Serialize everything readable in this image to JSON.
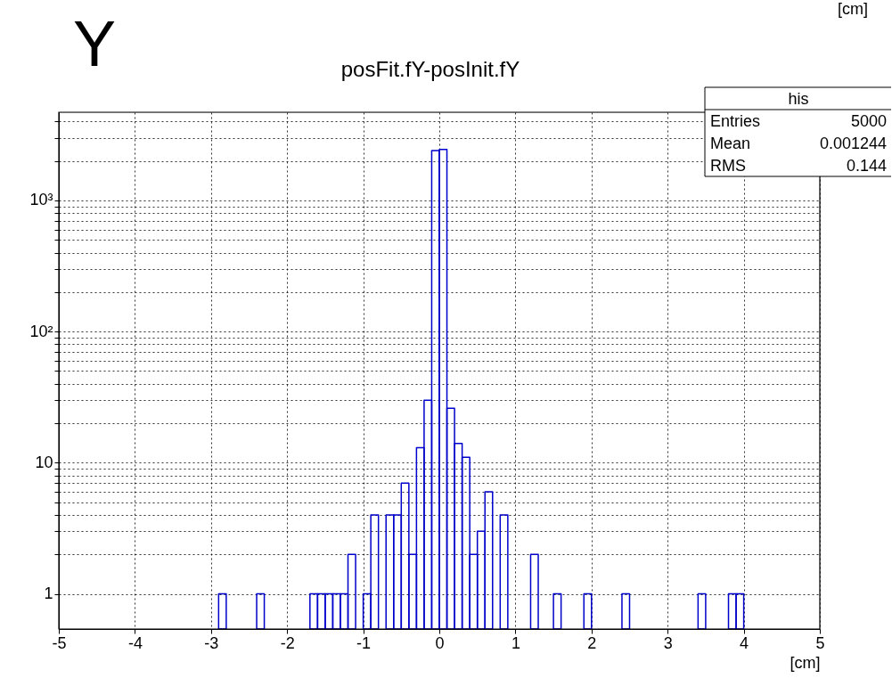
{
  "chart_data": {
    "type": "histogram",
    "title": "posFit.fY-posInit.fY",
    "xlabel": "[cm]",
    "annotations": [
      "Y",
      "[cm]",
      "his",
      "Entries",
      "5000",
      "Mean",
      "0.001244",
      "RMS",
      "0.144"
    ],
    "bins": [
      -5.0,
      -4.9,
      -4.8,
      -4.7,
      -4.6,
      -4.5,
      -4.4,
      -4.3,
      -4.2,
      -4.1,
      -4.0,
      -3.9,
      -3.8,
      -3.7,
      -3.6,
      -3.5,
      -3.4,
      -3.3,
      -3.2,
      -3.1,
      -3.0,
      -2.9,
      -2.8,
      -2.7,
      -2.6,
      -2.5,
      -2.4,
      -2.3,
      -2.2,
      -2.1,
      -2.0,
      -1.9,
      -1.8,
      -1.7,
      -1.6,
      -1.5,
      -1.4,
      -1.3,
      -1.2,
      -1.1,
      -1.0,
      -0.9,
      -0.8,
      -0.7,
      -0.6,
      -0.5,
      -0.4,
      -0.3,
      -0.2,
      -0.1,
      0.0,
      0.1,
      0.2,
      0.3,
      0.4,
      0.5,
      0.6,
      0.7,
      0.8,
      0.9,
      1.0,
      1.1,
      1.2,
      1.3,
      1.4,
      1.5,
      1.6,
      1.7,
      1.8,
      1.9,
      2.0,
      2.1,
      2.2,
      2.3,
      2.4,
      2.5,
      2.6,
      2.7,
      2.8,
      2.9,
      3.0,
      3.1,
      3.2,
      3.3,
      3.4,
      3.5,
      3.6,
      3.7,
      3.8,
      3.9,
      4.0,
      4.1,
      4.2,
      4.3,
      4.4,
      4.5,
      4.6,
      4.7,
      4.8,
      4.9,
      5.0
    ],
    "values": [
      null,
      null,
      null,
      null,
      null,
      null,
      null,
      null,
      null,
      null,
      null,
      null,
      null,
      null,
      null,
      null,
      null,
      null,
      null,
      null,
      null,
      1,
      null,
      null,
      null,
      null,
      1,
      null,
      null,
      null,
      null,
      null,
      null,
      1,
      1,
      1,
      1,
      1,
      2,
      null,
      1,
      4,
      null,
      4,
      4,
      7,
      2,
      13,
      30,
      2400,
      2450,
      26,
      14,
      11,
      2,
      3,
      6,
      null,
      4,
      null,
      null,
      null,
      2,
      null,
      null,
      1,
      null,
      null,
      null,
      1,
      null,
      null,
      null,
      null,
      1,
      null,
      null,
      null,
      null,
      null,
      null,
      null,
      null,
      null,
      1,
      null,
      null,
      null,
      1,
      1,
      null,
      null,
      null,
      null,
      null,
      null,
      null,
      null,
      null,
      null
    ],
    "color": "#0000cc",
    "log": "y",
    "grid": true,
    "xlim": [
      -5,
      5
    ],
    "xticks": [
      -5,
      -4,
      -3,
      -2,
      -1,
      0,
      1,
      2,
      3,
      4,
      5
    ],
    "ylim": [
      0.54,
      4700
    ],
    "yticks": [
      {
        "value": 1,
        "label": "1"
      },
      {
        "value": 2,
        "label": null
      },
      {
        "value": 3,
        "label": null
      },
      {
        "value": 4,
        "label": null
      },
      {
        "value": 5,
        "label": null
      },
      {
        "value": 6,
        "label": null
      },
      {
        "value": 7,
        "label": null
      },
      {
        "value": 8,
        "label": null
      },
      {
        "value": 9,
        "label": null
      },
      {
        "value": 10,
        "label": "10"
      },
      {
        "value": 20,
        "label": null
      },
      {
        "value": 30,
        "label": null
      },
      {
        "value": 40,
        "label": null
      },
      {
        "value": 50,
        "label": null
      },
      {
        "value": 60,
        "label": null
      },
      {
        "value": 70,
        "label": null
      },
      {
        "value": 80,
        "label": null
      },
      {
        "value": 90,
        "label": null
      },
      {
        "value": 100,
        "label": "10²"
      },
      {
        "value": 200,
        "label": null
      },
      {
        "value": 300,
        "label": null
      },
      {
        "value": 400,
        "label": null
      },
      {
        "value": 500,
        "label": null
      },
      {
        "value": 600,
        "label": null
      },
      {
        "value": 700,
        "label": null
      },
      {
        "value": 800,
        "label": null
      },
      {
        "value": 900,
        "label": null
      },
      {
        "value": 1000,
        "label": "10³"
      },
      {
        "value": 2000,
        "label": null
      },
      {
        "value": 3000,
        "label": null
      },
      {
        "value": 4000,
        "label": null
      }
    ]
  }
}
